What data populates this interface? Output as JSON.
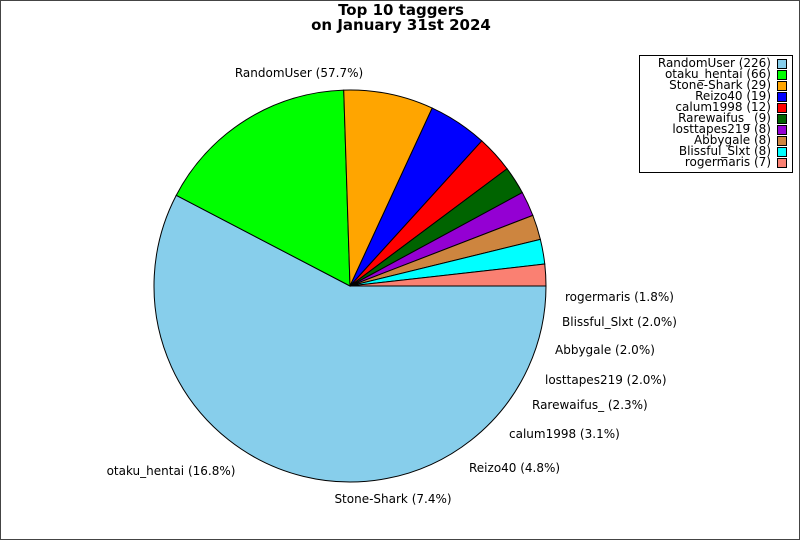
{
  "chart_data": {
    "type": "pie",
    "title": [
      "Top 10 taggers",
      "on January 31st 2024"
    ],
    "start_angle_deg": 0,
    "direction": "clockwise",
    "legend_position": "top-right",
    "slices": [
      {
        "name": "RandomUser",
        "value": 226,
        "percent": "57.7%",
        "color": "#87CEEB",
        "legend": "RandomUser (226)",
        "label": "RandomUser (57.7%)"
      },
      {
        "name": "otaku_hentai",
        "value": 66,
        "percent": "16.8%",
        "color": "#00FF00",
        "legend": "otaku_hentai (66)",
        "label": "otaku_hentai (16.8%)"
      },
      {
        "name": "Stone-Shark",
        "value": 29,
        "percent": "7.4%",
        "color": "#FFA500",
        "legend": "Stone-Shark (29)",
        "label": "Stone-Shark (7.4%)"
      },
      {
        "name": "Reizo40",
        "value": 19,
        "percent": "4.8%",
        "color": "#0000FF",
        "legend": "Reizo40 (19)",
        "label": "Reizo40 (4.8%)"
      },
      {
        "name": "calum1998",
        "value": 12,
        "percent": "3.1%",
        "color": "#FF0000",
        "legend": "calum1998 (12)",
        "label": "calum1998 (3.1%)"
      },
      {
        "name": "Rarewaifus_",
        "value": 9,
        "percent": "2.3%",
        "color": "#006400",
        "legend": "Rarewaifus_ (9)",
        "label": "Rarewaifus_ (2.3%)"
      },
      {
        "name": "losttapes219",
        "value": 8,
        "percent": "2.0%",
        "color": "#9400D3",
        "legend": "losttapes219 (8)",
        "label": "losttapes219 (2.0%)"
      },
      {
        "name": "Abbygale",
        "value": 8,
        "percent": "2.0%",
        "color": "#CD853F",
        "legend": "Abbygale (8)",
        "label": "Abbygale (2.0%)"
      },
      {
        "name": "Blissful_Slxt",
        "value": 8,
        "percent": "2.0%",
        "color": "#00FFFF",
        "legend": "Blissful_Slxt (8)",
        "label": "Blissful_Slxt (2.0%)"
      },
      {
        "name": "rogermaris",
        "value": 7,
        "percent": "1.8%",
        "color": "#FA8072",
        "legend": "rogermaris (7)",
        "label": "rogermaris (1.8%)"
      }
    ]
  }
}
